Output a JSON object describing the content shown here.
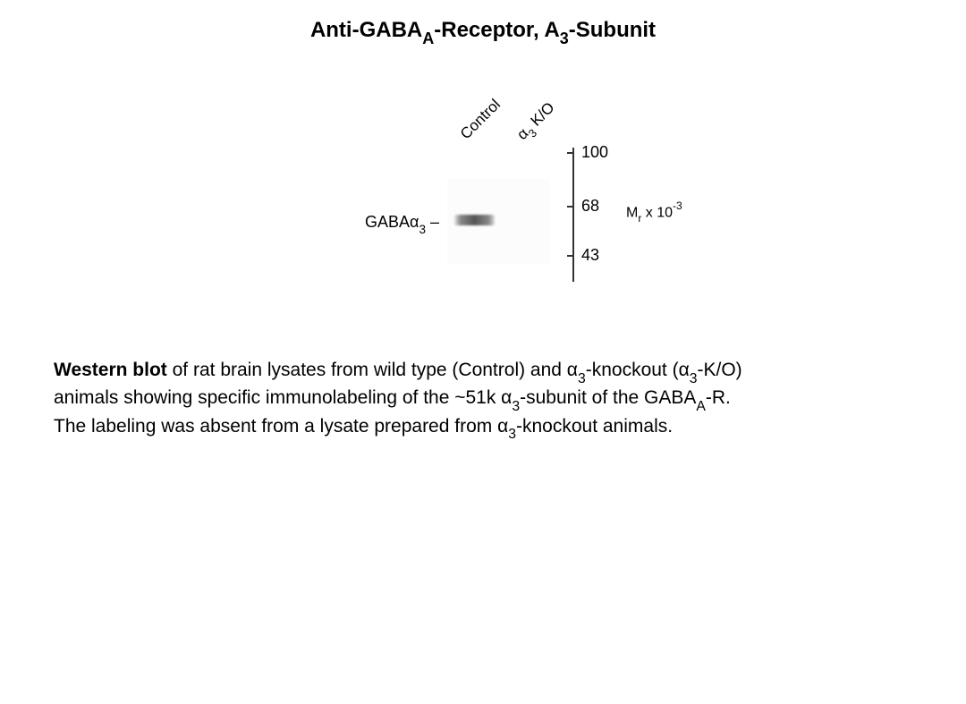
{
  "title": {
    "prefix": "Anti-GABA",
    "sub1": "A",
    "mid": "-Receptor, A",
    "sub2": "3",
    "suffix": "-Subunit"
  },
  "blot": {
    "lane1_label": "Control",
    "lane2_label_pre": "α",
    "lane2_label_sub": "3",
    "lane2_label_post": " K/O",
    "band_label_pre": "GABAα",
    "band_label_sub": "3",
    "band_label_post": " –",
    "mw_100": "100",
    "mw_68": "68",
    "mw_43": "43",
    "mr_label_pre": "M",
    "mr_label_sub": "r",
    "mr_label_mid": " x 10",
    "mr_label_sup": "-3",
    "band_color_light": "#e8e8e8",
    "band_color_dark": "#555555",
    "gel_bg": "#fcfcfc",
    "axis_color": "#333333"
  },
  "caption": {
    "s1_bold": "Western blot",
    "s1_a": " of rat brain lysates from wild type (Control) and α",
    "s1_sub1": "3",
    "s1_b": "-knockout (α",
    "s1_sub2": "3",
    "s1_c": "-K/O)",
    "s2_a": "animals showing specific immunolabeling of the ~51k α",
    "s2_sub1": "3",
    "s2_b": "-subunit of the GABA",
    "s2_sub2": "A",
    "s2_c": "-R.",
    "s3_a": "The labeling was absent from a lysate prepared from α",
    "s3_sub1": "3",
    "s3_b": "-knockout animals."
  },
  "style": {
    "title_fontsize": 24,
    "caption_fontsize": 21,
    "label_fontsize": 18,
    "bg_color": "#ffffff",
    "text_color": "#000000"
  }
}
